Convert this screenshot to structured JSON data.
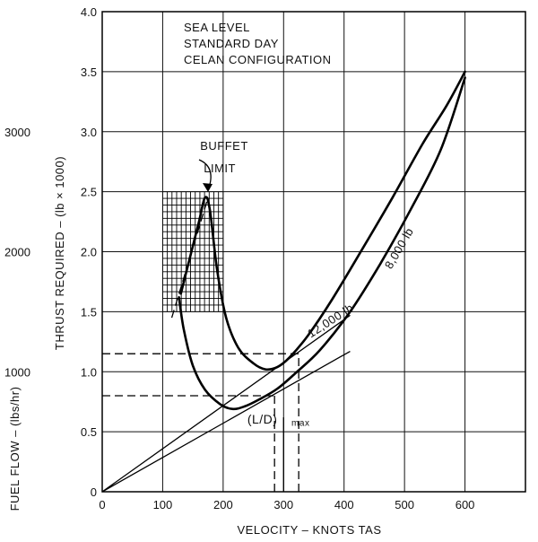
{
  "chart_data": {
    "type": "line",
    "annotation_box": [
      "SEA LEVEL",
      "STANDARD DAY",
      "CELAN CONFIGURATION"
    ],
    "xlabel": "VELOCITY – KNOTS TAS",
    "ylabel": "THRUST REQUIRED – (lb × 1000)",
    "ylabel2": "FUEL FLOW – (lbs/hr)",
    "xlim": [
      0,
      700
    ],
    "ylim": [
      0,
      4.0
    ],
    "x_ticks": [
      {
        "value": 0,
        "label": "0"
      },
      {
        "value": 100,
        "label": "100"
      },
      {
        "value": 200,
        "label": "200"
      },
      {
        "value": 300,
        "label": "300"
      },
      {
        "value": 400,
        "label": "400"
      },
      {
        "value": 500,
        "label": "500"
      },
      {
        "value": 600,
        "label": "600"
      }
    ],
    "y_ticks": [
      {
        "value": 0,
        "label": "0"
      },
      {
        "value": 0.5,
        "label": "0.5"
      },
      {
        "value": 1.0,
        "label": "1.0"
      },
      {
        "value": 1.5,
        "label": "1.5"
      },
      {
        "value": 2.0,
        "label": "2.0"
      },
      {
        "value": 2.5,
        "label": "2.5"
      },
      {
        "value": 3.0,
        "label": "3.0"
      },
      {
        "value": 3.5,
        "label": "3.5"
      },
      {
        "value": 4.0,
        "label": "4.0"
      }
    ],
    "fuel_flow_ticks": [
      {
        "value": 1000,
        "label": "1000",
        "at_thrust": 1.0
      },
      {
        "value": 2000,
        "label": "2000",
        "at_thrust": 2.0
      },
      {
        "value": 3000,
        "label": "3000",
        "at_thrust": 3.0
      }
    ],
    "series": [
      {
        "name": "12,000 lb",
        "x": [
          130,
          145,
          160,
          170,
          178,
          190,
          205,
          225,
          250,
          270,
          290,
          310,
          340,
          380,
          430,
          480,
          530,
          570,
          600
        ],
        "y": [
          1.65,
          1.95,
          2.25,
          2.45,
          2.35,
          1.85,
          1.45,
          1.2,
          1.07,
          1.02,
          1.04,
          1.12,
          1.3,
          1.6,
          2.02,
          2.45,
          2.9,
          3.22,
          3.5
        ]
      },
      {
        "name": "8,000 lb",
        "x": [
          127,
          135,
          150,
          170,
          195,
          215,
          235,
          260,
          290,
          320,
          360,
          410,
          460,
          510,
          560,
          600
        ],
        "y": [
          1.62,
          1.35,
          1.05,
          0.85,
          0.73,
          0.69,
          0.71,
          0.77,
          0.86,
          0.99,
          1.18,
          1.5,
          1.9,
          2.35,
          2.85,
          3.45
        ]
      }
    ],
    "tangent_lines": [
      {
        "x": [
          0,
          410
        ],
        "y": [
          0,
          1.17
        ]
      },
      {
        "x": [
          0,
          410
        ],
        "y": [
          0,
          1.47
        ]
      }
    ],
    "dashed_lines": [
      {
        "x": [
          0,
          325
        ],
        "y": [
          1.15,
          1.15
        ]
      },
      {
        "x": [
          325,
          325
        ],
        "y": [
          0,
          1.15
        ]
      },
      {
        "x": [
          0,
          285
        ],
        "y": [
          0.8,
          0.8
        ]
      },
      {
        "x": [
          285,
          285
        ],
        "y": [
          0,
          0.8
        ]
      },
      {
        "x": [
          115,
          175
        ],
        "y": [
          1.45,
          2.45
        ]
      }
    ],
    "buffet_region": {
      "x": [
        100,
        200
      ],
      "y": [
        1.5,
        2.5
      ]
    },
    "annotations": [
      {
        "text": "BUFFET",
        "x": 162,
        "y": 2.85
      },
      {
        "text": "LIMIT",
        "x": 168,
        "y": 2.66
      },
      {
        "text": "12,000 lb",
        "x": 345,
        "y": 1.28
      },
      {
        "text": "8,000 lb",
        "x": 478,
        "y": 1.85
      },
      {
        "text": "(L/D)",
        "x": 240,
        "y": 0.57
      },
      {
        "text": "max",
        "x": 313,
        "y": 0.55
      }
    ],
    "grid": true
  }
}
